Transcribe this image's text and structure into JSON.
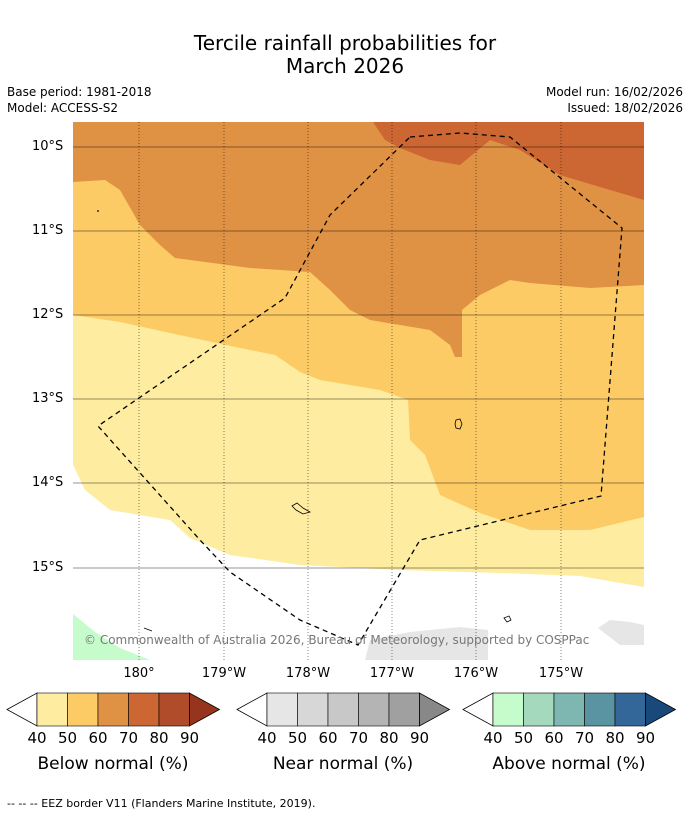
{
  "title_line1": "Tercile rainfall probabilities for",
  "title_line2": "March 2026",
  "meta": {
    "base_period": "Base period: 1981-2018",
    "model": "Model: ACCESS-S2",
    "model_run": "Model run: 16/02/2026",
    "issued": "Issued: 18/02/2026"
  },
  "map": {
    "lat_labels": [
      "10°S",
      "11°S",
      "12°S",
      "13°S",
      "14°S",
      "15°S"
    ],
    "lon_labels": [
      "180°",
      "179°W",
      "178°W",
      "177°W",
      "176°W",
      "175°W"
    ],
    "copyright": "© Commonwealth of Australia 2026, Bureau of Meteorology, supported by COSPPac",
    "colors": {
      "below_40": "#feeda0",
      "below_50": "#fdcb66",
      "below_60": "#e09244",
      "below_70": "#cc6633",
      "near_40": "#e6e6e6",
      "above_40": "#c6fccc",
      "land": "#cccccc"
    }
  },
  "colorbars": [
    {
      "title": "Below normal (%)",
      "ticks": [
        "40",
        "50",
        "60",
        "70",
        "80",
        "90"
      ],
      "colors": [
        "#feeda0",
        "#fdcb66",
        "#e09244",
        "#cc6633",
        "#b04c2a",
        "#97341d"
      ]
    },
    {
      "title": "Near normal (%)",
      "ticks": [
        "40",
        "50",
        "60",
        "70",
        "80",
        "90"
      ],
      "colors": [
        "#e6e6e6",
        "#d7d7d7",
        "#c8c8c8",
        "#b4b4b4",
        "#a0a0a0",
        "#888888"
      ]
    },
    {
      "title": "Above normal (%)",
      "ticks": [
        "40",
        "50",
        "60",
        "70",
        "80",
        "90"
      ],
      "colors": [
        "#c6fccc",
        "#a5d9bd",
        "#7eb7b1",
        "#5a93a2",
        "#336699",
        "#18497a"
      ]
    }
  ],
  "footer": "--  --  -- EEZ border V11 (Flanders Marine Institute, 2019)."
}
